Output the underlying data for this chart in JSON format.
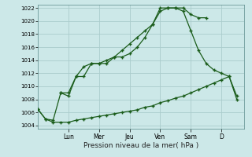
{
  "background_color": "#cce8e8",
  "grid_color": "#aacccc",
  "line_color": "#1a5c1a",
  "xlabel": "Pression niveau de la mer( hPa )",
  "ylim": [
    1003.5,
    1022.5
  ],
  "yticks": [
    1004,
    1006,
    1008,
    1010,
    1012,
    1014,
    1016,
    1018,
    1020,
    1022
  ],
  "day_labels": [
    "Lun",
    "Mer",
    "Jeu",
    "Ven",
    "Sam",
    "D"
  ],
  "day_tick_positions": [
    4,
    8,
    12,
    16,
    20,
    24
  ],
  "xlim": [
    0,
    27
  ],
  "series1_x": [
    0,
    1,
    2,
    3,
    4,
    5,
    6,
    7,
    8,
    9,
    10,
    11,
    12,
    13,
    14,
    15,
    16,
    17,
    18,
    19,
    20,
    21,
    22
  ],
  "series1_y": [
    1006.5,
    1005.0,
    1004.8,
    1009.0,
    1008.5,
    1011.5,
    1011.5,
    1013.5,
    1013.5,
    1013.5,
    1014.5,
    1014.5,
    1015.0,
    1016.0,
    1017.5,
    1019.5,
    1021.5,
    1022.0,
    1022.0,
    1022.0,
    1021.0,
    1020.5,
    1020.5
  ],
  "series2_x": [
    0,
    1,
    2,
    3,
    4,
    5,
    6,
    7,
    8,
    9,
    10,
    11,
    12,
    13,
    14,
    15,
    16,
    17,
    18,
    19,
    20,
    21,
    22,
    23,
    24,
    25,
    26
  ],
  "series2_y": [
    1006.5,
    1005.0,
    1004.5,
    1004.5,
    1004.5,
    1004.8,
    1005.0,
    1005.2,
    1005.4,
    1005.6,
    1005.8,
    1006.0,
    1006.2,
    1006.4,
    1006.8,
    1007.0,
    1007.5,
    1007.8,
    1008.2,
    1008.5,
    1009.0,
    1009.5,
    1010.0,
    1010.5,
    1011.0,
    1011.5,
    1008.0
  ],
  "series3_x": [
    3,
    4,
    5,
    6,
    7,
    8,
    9,
    10,
    11,
    12,
    13,
    14,
    15,
    16,
    17,
    18,
    19,
    20,
    21,
    22,
    23,
    24,
    25,
    26
  ],
  "series3_y": [
    1009.0,
    1009.0,
    1011.5,
    1013.0,
    1013.5,
    1013.5,
    1014.0,
    1014.5,
    1015.5,
    1016.5,
    1017.5,
    1018.5,
    1019.5,
    1022.0,
    1022.0,
    1022.0,
    1021.5,
    1018.5,
    1015.5,
    1013.5,
    1012.5,
    1012.0,
    1011.5,
    1008.5
  ],
  "marker": "+",
  "markersize": 3,
  "markeredgewidth": 1.0,
  "linewidth": 0.9
}
